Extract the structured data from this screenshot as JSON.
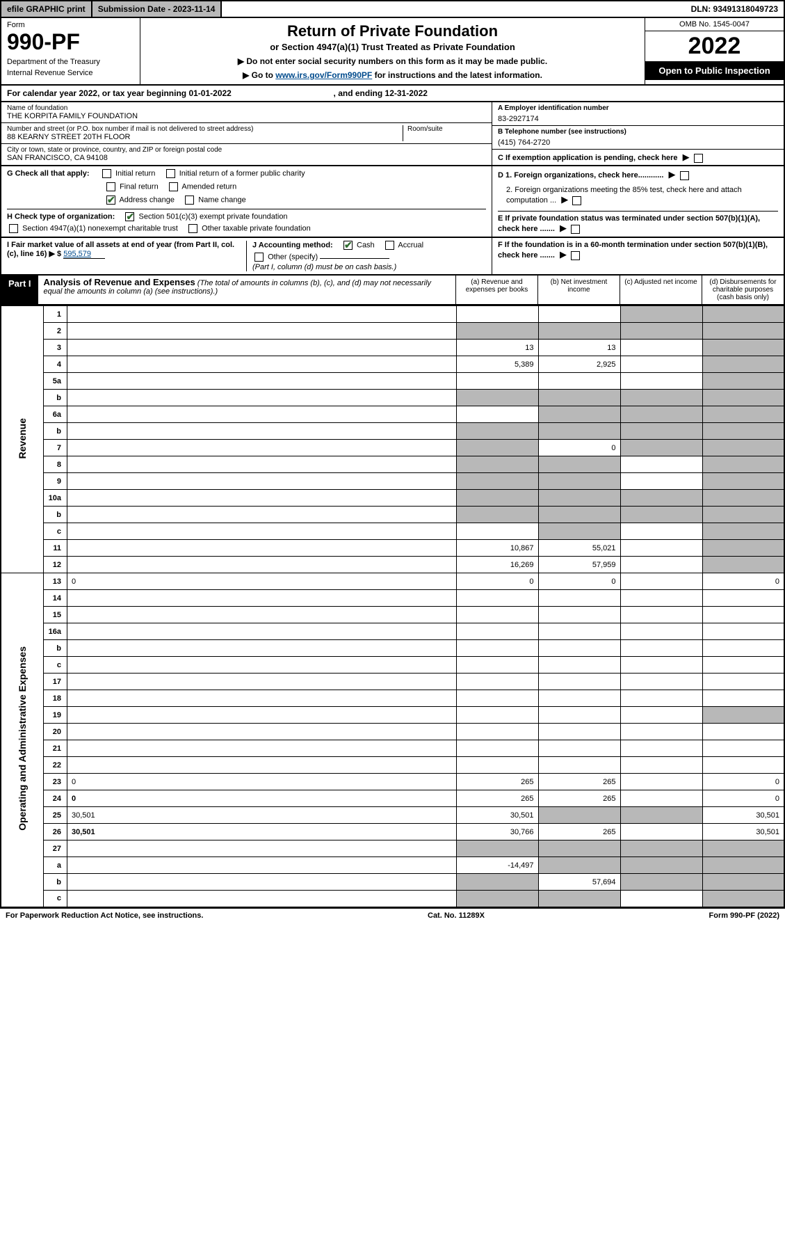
{
  "topbar": {
    "efile": "efile GRAPHIC print",
    "submission": "Submission Date - 2023-11-14",
    "dln": "DLN: 93491318049723"
  },
  "header": {
    "form_label": "Form",
    "form_number": "990-PF",
    "dept1": "Department of the Treasury",
    "dept2": "Internal Revenue Service",
    "title": "Return of Private Foundation",
    "subtitle": "or Section 4947(a)(1) Trust Treated as Private Foundation",
    "instr1": "▶ Do not enter social security numbers on this form as it may be made public.",
    "instr2_pre": "▶ Go to ",
    "instr2_link": "www.irs.gov/Form990PF",
    "instr2_post": " for instructions and the latest information.",
    "omb": "OMB No. 1545-0047",
    "year": "2022",
    "open": "Open to Public Inspection"
  },
  "cal_year": {
    "pre": "For calendar year 2022, or tax year beginning ",
    "begin": "01-01-2022",
    "mid": " , and ending ",
    "end": "12-31-2022"
  },
  "info": {
    "name_label": "Name of foundation",
    "name": "THE KORPITA FAMILY FOUNDATION",
    "addr_label": "Number and street (or P.O. box number if mail is not delivered to street address)",
    "addr": "88 KEARNY STREET 20TH FLOOR",
    "room_label": "Room/suite",
    "city_label": "City or town, state or province, country, and ZIP or foreign postal code",
    "city": "SAN FRANCISCO, CA  94108",
    "ein_label": "A Employer identification number",
    "ein": "83-2927174",
    "phone_label": "B Telephone number (see instructions)",
    "phone": "(415) 764-2720",
    "c_label": "C If exemption application is pending, check here",
    "d1": "D 1. Foreign organizations, check here............",
    "d2": "2. Foreign organizations meeting the 85% test, check here and attach computation ...",
    "e": "E  If private foundation status was terminated under section 507(b)(1)(A), check here .......",
    "f": "F  If the foundation is in a 60-month termination under section 507(b)(1)(B), check here .......",
    "g_label": "G Check all that apply:",
    "g_opts": [
      "Initial return",
      "Initial return of a former public charity",
      "Final return",
      "Amended return",
      "Address change",
      "Name change"
    ],
    "h_label": "H Check type of organization:",
    "h1": "Section 501(c)(3) exempt private foundation",
    "h2": "Section 4947(a)(1) nonexempt charitable trust",
    "h3": "Other taxable private foundation",
    "i_label": "I Fair market value of all assets at end of year (from Part II, col. (c), line 16) ▶ $",
    "i_val": "595,579",
    "j_label": "J Accounting method:",
    "j_cash": "Cash",
    "j_accrual": "Accrual",
    "j_other": "Other (specify)",
    "j_note": "(Part I, column (d) must be on cash basis.)"
  },
  "part1": {
    "label": "Part I",
    "title": "Analysis of Revenue and Expenses",
    "note": " (The total of amounts in columns (b), (c), and (d) may not necessarily equal the amounts in column (a) (see instructions).)",
    "col_a": "(a) Revenue and expenses per books",
    "col_b": "(b) Net investment income",
    "col_c": "(c) Adjusted net income",
    "col_d": "(d) Disbursements for charitable purposes (cash basis only)"
  },
  "sections": {
    "revenue": "Revenue",
    "expenses": "Operating and Administrative Expenses"
  },
  "lines": [
    {
      "n": "1",
      "d": "",
      "a": "",
      "b": "",
      "c": "",
      "c_sh": true,
      "d_sh": true
    },
    {
      "n": "2",
      "d": "",
      "a": "",
      "b": "",
      "c": "",
      "a_sh": true,
      "b_sh": true,
      "c_sh": true,
      "d_sh": true,
      "not_bold": false
    },
    {
      "n": "3",
      "d": "",
      "a": "13",
      "b": "13",
      "c": "",
      "d_sh": true
    },
    {
      "n": "4",
      "d": "",
      "a": "5,389",
      "b": "2,925",
      "c": "",
      "d_sh": true
    },
    {
      "n": "5a",
      "d": "",
      "a": "",
      "b": "",
      "c": "",
      "d_sh": true
    },
    {
      "n": "b",
      "d": "",
      "a": "",
      "b": "",
      "c": "",
      "a_sh": true,
      "b_sh": true,
      "c_sh": true,
      "d_sh": true
    },
    {
      "n": "6a",
      "d": "",
      "a": "",
      "b": "",
      "c": "",
      "b_sh": true,
      "c_sh": true,
      "d_sh": true
    },
    {
      "n": "b",
      "d": "",
      "a": "",
      "b": "",
      "c": "",
      "a_sh": true,
      "b_sh": true,
      "c_sh": true,
      "d_sh": true
    },
    {
      "n": "7",
      "d": "",
      "a": "",
      "b": "0",
      "c": "",
      "a_sh": true,
      "c_sh": true,
      "d_sh": true
    },
    {
      "n": "8",
      "d": "",
      "a": "",
      "b": "",
      "c": "",
      "a_sh": true,
      "b_sh": true,
      "d_sh": true
    },
    {
      "n": "9",
      "d": "",
      "a": "",
      "b": "",
      "c": "",
      "a_sh": true,
      "b_sh": true,
      "d_sh": true
    },
    {
      "n": "10a",
      "d": "",
      "a": "",
      "b": "",
      "c": "",
      "a_sh": true,
      "b_sh": true,
      "c_sh": true,
      "d_sh": true
    },
    {
      "n": "b",
      "d": "",
      "a": "",
      "b": "",
      "c": "",
      "a_sh": true,
      "b_sh": true,
      "c_sh": true,
      "d_sh": true
    },
    {
      "n": "c",
      "d": "",
      "a": "",
      "b": "",
      "c": "",
      "b_sh": true,
      "d_sh": true
    },
    {
      "n": "11",
      "d": "",
      "a": "10,867",
      "b": "55,021",
      "c": "",
      "d_sh": true
    },
    {
      "n": "12",
      "d": "",
      "a": "16,269",
      "b": "57,959",
      "c": "",
      "d_sh": true,
      "bold": true
    }
  ],
  "exp_lines": [
    {
      "n": "13",
      "d": "0",
      "a": "0",
      "b": "0",
      "c": ""
    },
    {
      "n": "14",
      "d": "",
      "a": "",
      "b": "",
      "c": ""
    },
    {
      "n": "15",
      "d": "",
      "a": "",
      "b": "",
      "c": ""
    },
    {
      "n": "16a",
      "d": "",
      "a": "",
      "b": "",
      "c": ""
    },
    {
      "n": "b",
      "d": "",
      "a": "",
      "b": "",
      "c": ""
    },
    {
      "n": "c",
      "d": "",
      "a": "",
      "b": "",
      "c": ""
    },
    {
      "n": "17",
      "d": "",
      "a": "",
      "b": "",
      "c": ""
    },
    {
      "n": "18",
      "d": "",
      "a": "",
      "b": "",
      "c": ""
    },
    {
      "n": "19",
      "d": "",
      "a": "",
      "b": "",
      "c": "",
      "d_sh": true
    },
    {
      "n": "20",
      "d": "",
      "a": "",
      "b": "",
      "c": ""
    },
    {
      "n": "21",
      "d": "",
      "a": "",
      "b": "",
      "c": ""
    },
    {
      "n": "22",
      "d": "",
      "a": "",
      "b": "",
      "c": ""
    },
    {
      "n": "23",
      "d": "0",
      "a": "265",
      "b": "265",
      "c": ""
    },
    {
      "n": "24",
      "d": "0",
      "a": "265",
      "b": "265",
      "c": "",
      "bold": true
    },
    {
      "n": "25",
      "d": "30,501",
      "a": "30,501",
      "b": "",
      "c": "",
      "b_sh": true,
      "c_sh": true
    },
    {
      "n": "26",
      "d": "30,501",
      "a": "30,766",
      "b": "265",
      "c": "",
      "bold": true
    },
    {
      "n": "27",
      "d": "",
      "a": "",
      "b": "",
      "c": "",
      "a_sh": true,
      "b_sh": true,
      "c_sh": true,
      "d_sh": true
    },
    {
      "n": "a",
      "d": "",
      "a": "-14,497",
      "b": "",
      "c": "",
      "b_sh": true,
      "c_sh": true,
      "d_sh": true,
      "bold": true
    },
    {
      "n": "b",
      "d": "",
      "a": "",
      "b": "57,694",
      "c": "",
      "a_sh": true,
      "c_sh": true,
      "d_sh": true,
      "bold": true
    },
    {
      "n": "c",
      "d": "",
      "a": "",
      "b": "",
      "c": "",
      "a_sh": true,
      "b_sh": true,
      "d_sh": true,
      "bold": true
    }
  ],
  "footer": {
    "left": "For Paperwork Reduction Act Notice, see instructions.",
    "mid": "Cat. No. 11289X",
    "right": "Form 990-PF (2022)"
  }
}
